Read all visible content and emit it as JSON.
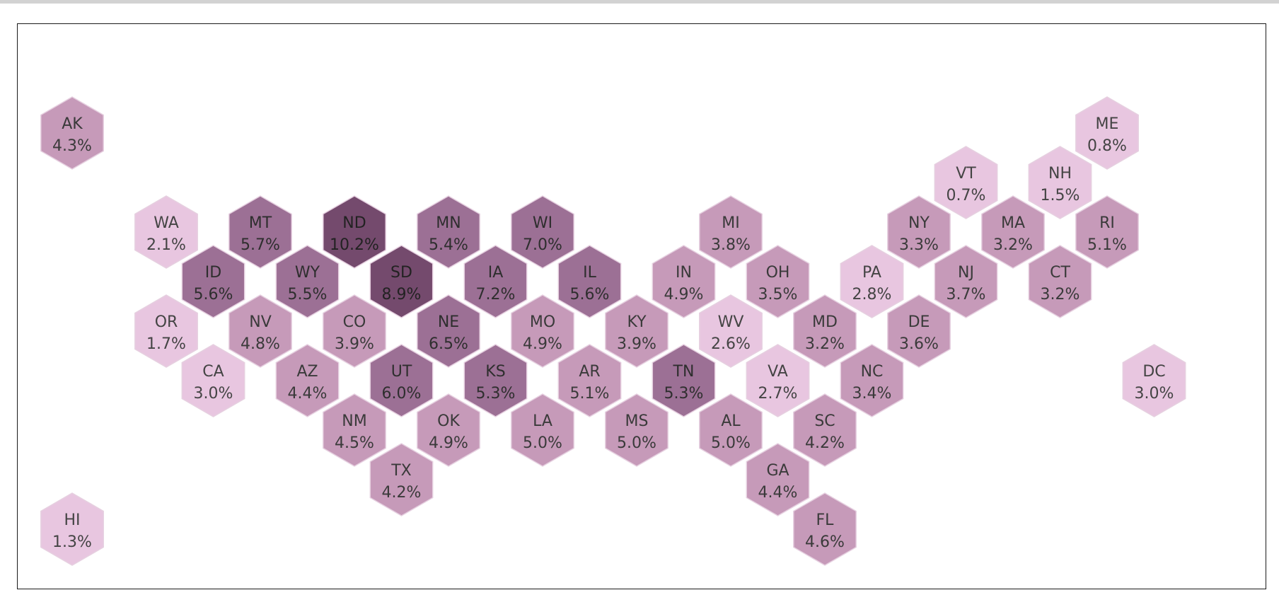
{
  "chart_data": {
    "type": "heatmap",
    "subtype": "us-state-hex-tile-map",
    "title": "",
    "value_format": "percent",
    "color_scale": {
      "min_value": 0.7,
      "max_value": 10.2,
      "steps": [
        {
          "max": 3.0,
          "fill": "#e8c6e0",
          "text": "#444444"
        },
        {
          "max": 5.1,
          "fill": "#c69ab9",
          "text": "#3a3a3a"
        },
        {
          "max": 7.2,
          "fill": "#9c7095",
          "text": "#2e2e2e"
        },
        {
          "max": 20,
          "fill": "#744a6d",
          "text": "#222222"
        }
      ],
      "stroke": "#e6d0e0"
    },
    "tiles": [
      {
        "state": "AK",
        "label": "4.3%",
        "value": 4.3,
        "row": 0,
        "col": 0
      },
      {
        "state": "ME",
        "label": "0.8%",
        "value": 0.8,
        "row": 0,
        "col": 11
      },
      {
        "state": "VT",
        "label": "0.7%",
        "value": 0.7,
        "row": 1,
        "col": 9.5
      },
      {
        "state": "NH",
        "label": "1.5%",
        "value": 1.5,
        "row": 1,
        "col": 10.5
      },
      {
        "state": "WA",
        "label": "2.1%",
        "value": 2.1,
        "row": 2,
        "col": 1
      },
      {
        "state": "MT",
        "label": "5.7%",
        "value": 5.7,
        "row": 2,
        "col": 2
      },
      {
        "state": "ND",
        "label": "10.2%",
        "value": 10.2,
        "row": 2,
        "col": 3
      },
      {
        "state": "MN",
        "label": "5.4%",
        "value": 5.4,
        "row": 2,
        "col": 4
      },
      {
        "state": "WI",
        "label": "7.0%",
        "value": 7.0,
        "row": 2,
        "col": 5
      },
      {
        "state": "MI",
        "label": "3.8%",
        "value": 3.8,
        "row": 2,
        "col": 7
      },
      {
        "state": "NY",
        "label": "3.3%",
        "value": 3.3,
        "row": 2,
        "col": 9
      },
      {
        "state": "MA",
        "label": "3.2%",
        "value": 3.2,
        "row": 2,
        "col": 10
      },
      {
        "state": "RI",
        "label": "5.1%",
        "value": 5.1,
        "row": 2,
        "col": 11
      },
      {
        "state": "ID",
        "label": "5.6%",
        "value": 5.6,
        "row": 3,
        "col": 1.5
      },
      {
        "state": "WY",
        "label": "5.5%",
        "value": 5.5,
        "row": 3,
        "col": 2.5
      },
      {
        "state": "SD",
        "label": "8.9%",
        "value": 8.9,
        "row": 3,
        "col": 3.5
      },
      {
        "state": "IA",
        "label": "7.2%",
        "value": 7.2,
        "row": 3,
        "col": 4.5
      },
      {
        "state": "IL",
        "label": "5.6%",
        "value": 5.6,
        "row": 3,
        "col": 5.5
      },
      {
        "state": "IN",
        "label": "4.9%",
        "value": 4.9,
        "row": 3,
        "col": 6.5
      },
      {
        "state": "OH",
        "label": "3.5%",
        "value": 3.5,
        "row": 3,
        "col": 7.5
      },
      {
        "state": "PA",
        "label": "2.8%",
        "value": 2.8,
        "row": 3,
        "col": 8.5
      },
      {
        "state": "NJ",
        "label": "3.7%",
        "value": 3.7,
        "row": 3,
        "col": 9.5
      },
      {
        "state": "CT",
        "label": "3.2%",
        "value": 3.2,
        "row": 3,
        "col": 10.5
      },
      {
        "state": "OR",
        "label": "1.7%",
        "value": 1.7,
        "row": 4,
        "col": 1
      },
      {
        "state": "NV",
        "label": "4.8%",
        "value": 4.8,
        "row": 4,
        "col": 2
      },
      {
        "state": "CO",
        "label": "3.9%",
        "value": 3.9,
        "row": 4,
        "col": 3
      },
      {
        "state": "NE",
        "label": "6.5%",
        "value": 6.5,
        "row": 4,
        "col": 4
      },
      {
        "state": "MO",
        "label": "4.9%",
        "value": 4.9,
        "row": 4,
        "col": 5
      },
      {
        "state": "KY",
        "label": "3.9%",
        "value": 3.9,
        "row": 4,
        "col": 6
      },
      {
        "state": "WV",
        "label": "2.6%",
        "value": 2.6,
        "row": 4,
        "col": 7
      },
      {
        "state": "MD",
        "label": "3.2%",
        "value": 3.2,
        "row": 4,
        "col": 8
      },
      {
        "state": "DE",
        "label": "3.6%",
        "value": 3.6,
        "row": 4,
        "col": 9
      },
      {
        "state": "CA",
        "label": "3.0%",
        "value": 3.0,
        "row": 5,
        "col": 1.5
      },
      {
        "state": "AZ",
        "label": "4.4%",
        "value": 4.4,
        "row": 5,
        "col": 2.5
      },
      {
        "state": "UT",
        "label": "6.0%",
        "value": 6.0,
        "row": 5,
        "col": 3.5
      },
      {
        "state": "KS",
        "label": "5.3%",
        "value": 5.3,
        "row": 5,
        "col": 4.5
      },
      {
        "state": "AR",
        "label": "5.1%",
        "value": 5.1,
        "row": 5,
        "col": 5.5
      },
      {
        "state": "TN",
        "label": "5.3%",
        "value": 5.3,
        "row": 5,
        "col": 6.5
      },
      {
        "state": "VA",
        "label": "2.7%",
        "value": 2.7,
        "row": 5,
        "col": 7.5
      },
      {
        "state": "NC",
        "label": "3.4%",
        "value": 3.4,
        "row": 5,
        "col": 8.5
      },
      {
        "state": "DC",
        "label": "3.0%",
        "value": 3.0,
        "row": 5,
        "col": 11.5
      },
      {
        "state": "NM",
        "label": "4.5%",
        "value": 4.5,
        "row": 6,
        "col": 3
      },
      {
        "state": "OK",
        "label": "4.9%",
        "value": 4.9,
        "row": 6,
        "col": 4
      },
      {
        "state": "LA",
        "label": "5.0%",
        "value": 5.0,
        "row": 6,
        "col": 5
      },
      {
        "state": "MS",
        "label": "5.0%",
        "value": 5.0,
        "row": 6,
        "col": 6
      },
      {
        "state": "AL",
        "label": "5.0%",
        "value": 5.0,
        "row": 6,
        "col": 7
      },
      {
        "state": "SC",
        "label": "4.2%",
        "value": 4.2,
        "row": 6,
        "col": 8
      },
      {
        "state": "TX",
        "label": "4.2%",
        "value": 4.2,
        "row": 7,
        "col": 3.5
      },
      {
        "state": "GA",
        "label": "4.4%",
        "value": 4.4,
        "row": 7,
        "col": 7.5
      },
      {
        "state": "HI",
        "label": "1.3%",
        "value": 1.3,
        "row": 8,
        "col": 0
      },
      {
        "state": "FL",
        "label": "4.6%",
        "value": 4.6,
        "row": 8,
        "col": 8
      }
    ]
  }
}
